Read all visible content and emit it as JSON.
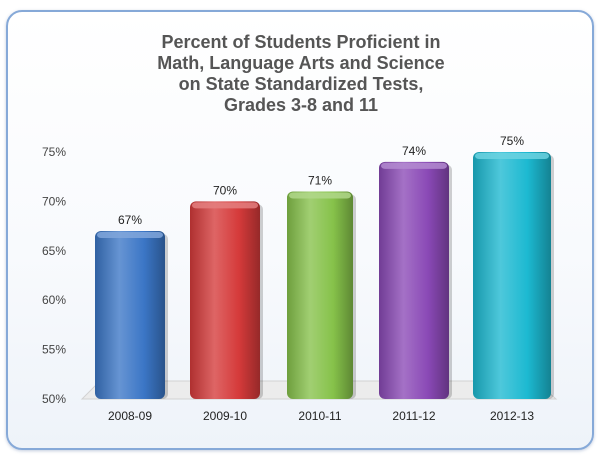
{
  "chart_data": {
    "type": "bar",
    "title": [
      "Percent of Students Proficient in",
      "Math, Language Arts and Science",
      "on State Standardized Tests,",
      "Grades 3-8 and 11"
    ],
    "categories": [
      "2008-09",
      "2009-10",
      "2010-11",
      "2011-12",
      "2012-13"
    ],
    "values": [
      67,
      70,
      71,
      74,
      75
    ],
    "data_labels": [
      "67%",
      "70%",
      "71%",
      "74%",
      "75%"
    ],
    "y_ticks": [
      "50%",
      "55%",
      "60%",
      "65%",
      "70%",
      "75%"
    ],
    "ylim": [
      50,
      75
    ],
    "grid": false,
    "bar_colors": [
      "#3b76c6",
      "#d53a3a",
      "#86c24a",
      "#8a49b6",
      "#1cb9d1"
    ],
    "legend": "none"
  }
}
